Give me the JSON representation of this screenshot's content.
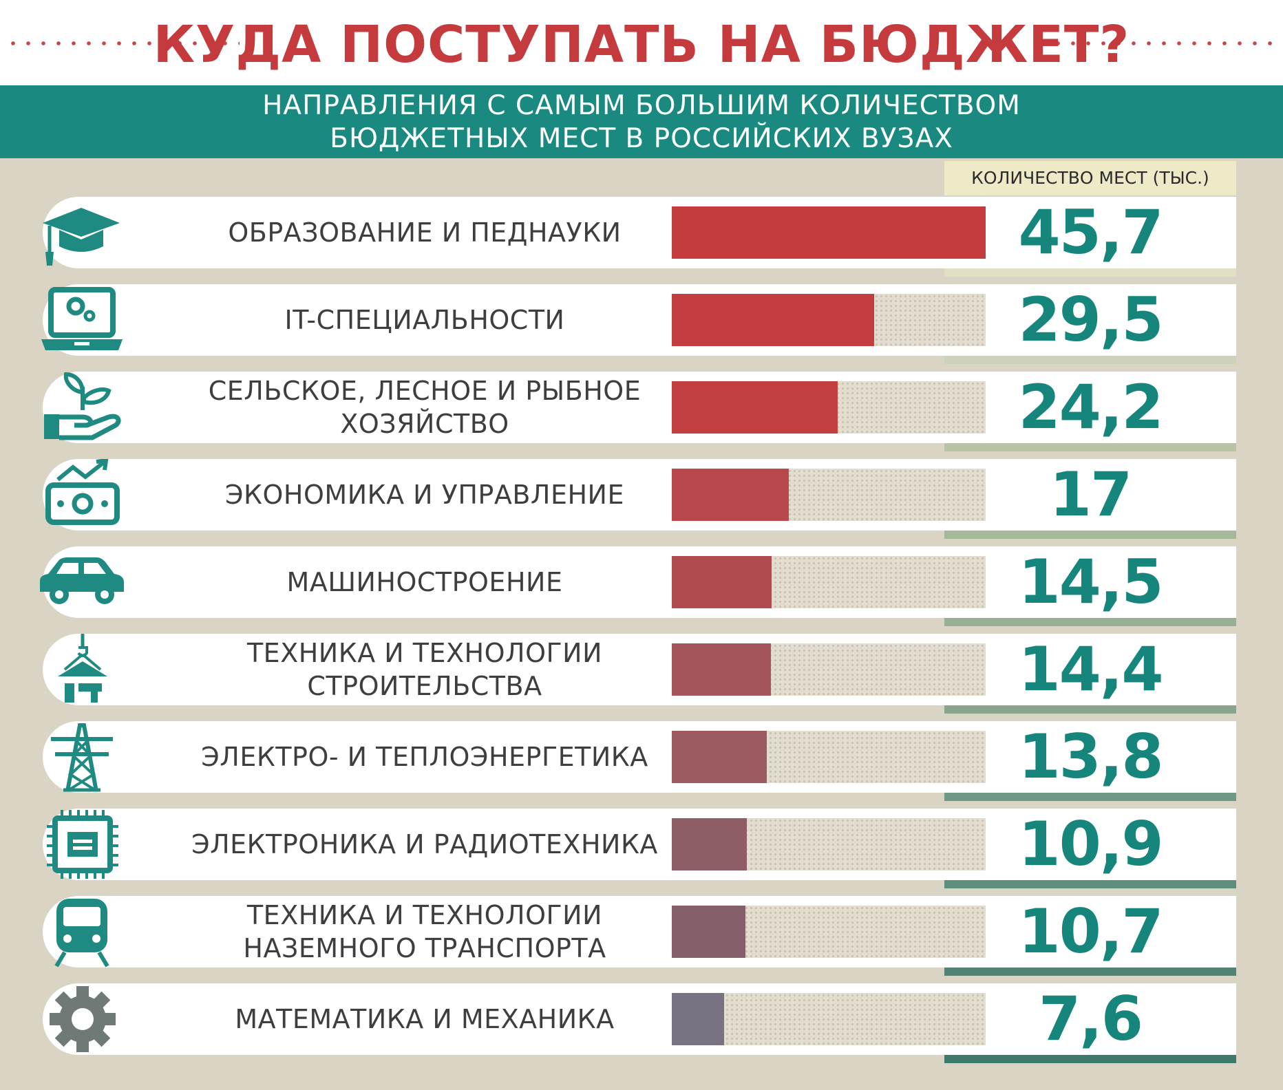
{
  "header": {
    "title": "КУДА ПОСТУПАТЬ НА БЮДЖЕТ?",
    "subtitle_line1": "НАПРАВЛЕНИЯ С САМЫМ БОЛЬШИМ КОЛИЧЕСТВОМ",
    "subtitle_line2": "БЮДЖЕТНЫХ МЕСТ В РОССИЙСКИХ ВУЗАХ"
  },
  "colors": {
    "title": "#c53a3d",
    "teal": "#1a8a80",
    "background": "#d9d4c3",
    "value_text": "#16857b"
  },
  "chart_data": {
    "type": "bar",
    "orientation": "horizontal",
    "value_header": "КОЛИЧЕСТВО МЕСТ (ТЫС.)",
    "xlim": [
      0,
      45.7
    ],
    "categories": [
      "ОБРАЗОВАНИЕ И ПЕДНАУКИ",
      "IT-СПЕЦИАЛЬНОСТИ",
      "СЕЛЬСКОЕ, ЛЕСНОЕ И РЫБНОЕ ХОЗЯЙСТВО",
      "ЭКОНОМИКА И УПРАВЛЕНИЕ",
      "МАШИНОСТРОЕНИЕ",
      "ТЕХНИКА И ТЕХНОЛОГИИ СТРОИТЕЛЬСТВА",
      "ЭЛЕКТРО- И ТЕПЛОЭНЕРГЕТИКА",
      "ЭЛЕКТРОНИКА И РАДИОТЕХНИКА",
      "ТЕХНИКА И ТЕХНОЛОГИИ НАЗЕМНОГО ТРАНСПОРТА",
      "МАТЕМАТИКА И МЕХАНИКА"
    ],
    "values": [
      45.7,
      29.5,
      24.2,
      17,
      14.5,
      14.4,
      13.8,
      10.9,
      10.7,
      7.6
    ],
    "value_labels": [
      "45,7",
      "29,5",
      "24,2",
      "17",
      "14,5",
      "14,4",
      "13,8",
      "10,9",
      "10,7",
      "7,6"
    ],
    "icons": [
      "graduation-cap-icon",
      "laptop-gears-icon",
      "hand-sprout-icon",
      "money-growth-icon",
      "car-icon",
      "crane-house-icon",
      "power-tower-icon",
      "microchip-icon",
      "train-icon",
      "gear-icon"
    ],
    "bar_colors": [
      "#c43b3e",
      "#c43d40",
      "#c23f42",
      "#b8484c",
      "#b04b50",
      "#a4555b",
      "#9b5a60",
      "#8e5d65",
      "#855f69",
      "#787282"
    ],
    "accent_colors": [
      "#e2e0c4",
      "#cfd2bb",
      "#b7c3a6",
      "#a6b89a",
      "#98af94",
      "#8aa58e",
      "#6e9a85",
      "#5e8f7e",
      "#4e8375",
      "#3e7a6c"
    ]
  }
}
